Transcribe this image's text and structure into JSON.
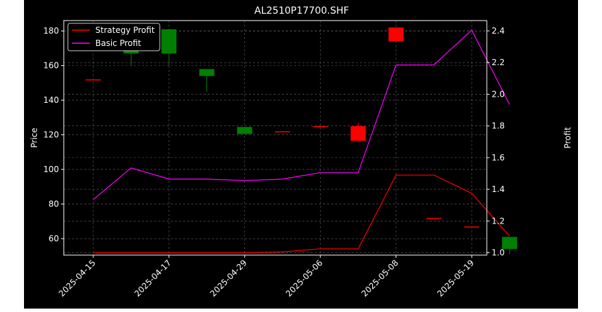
{
  "chart_data": {
    "type": "candlestick+line",
    "title": "AL2510P17700.SHF",
    "xlabel": "",
    "ylabel_left": "Price",
    "ylabel_right": "Profit",
    "ylim_left": [
      50.5,
      186
    ],
    "ylim_right": [
      0.985,
      2.465
    ],
    "yticks_left": [
      60,
      80,
      100,
      120,
      140,
      160,
      180
    ],
    "yticks_right": [
      "1.0",
      "1.2",
      "1.4",
      "1.6",
      "1.8",
      "2.0",
      "2.2",
      "2.4"
    ],
    "x_tick_labels": [
      "2025-04-15",
      "2025-04-17",
      "2025-04-29",
      "2025-05-06",
      "2025-05-08",
      "2025-05-19"
    ],
    "x_tick_positions": [
      0,
      2,
      4,
      6,
      8,
      10
    ],
    "grid": true,
    "legend_position": "top-left",
    "colors": {
      "background": "#000000",
      "text": "#ffffff",
      "grid": "#808080",
      "up": "#ff0000",
      "down": "#008000",
      "strategy_line": "#ff0000",
      "basic_line": "#ff00ff"
    },
    "candles": [
      {
        "open": 152,
        "high": 152,
        "low": 152,
        "close": 152
      },
      {
        "open": 181,
        "high": 181,
        "low": 160,
        "close": 167
      },
      {
        "open": 181,
        "high": 181,
        "low": 160,
        "close": 167
      },
      {
        "open": 158,
        "high": 158,
        "low": 145,
        "close": 154
      },
      {
        "open": 124.5,
        "high": 124.5,
        "low": 120.5,
        "close": 120.5
      },
      {
        "open": 122,
        "high": 122,
        "low": 122,
        "close": 122
      },
      {
        "open": 125,
        "high": 125,
        "low": 125,
        "close": 125
      },
      {
        "open": 116.5,
        "high": 127,
        "low": 116.5,
        "close": 125
      },
      {
        "open": 174,
        "high": 182,
        "low": 174,
        "close": 182
      },
      {
        "open": 72,
        "high": 72,
        "low": 72,
        "close": 72
      },
      {
        "open": 67,
        "high": 67,
        "low": 67,
        "close": 67
      },
      {
        "open": 61,
        "high": 61,
        "low": 51,
        "close": 54
      }
    ],
    "series": [
      {
        "name": "Strategy Profit",
        "values": [
          1.0,
          1.0,
          1.0,
          1.0,
          1.0,
          1.005,
          1.025,
          1.025,
          1.49,
          1.49,
          1.375,
          1.105
        ]
      },
      {
        "name": "Basic Profit",
        "values": [
          1.335,
          1.535,
          1.465,
          1.465,
          1.455,
          1.465,
          1.505,
          1.505,
          2.185,
          2.185,
          2.405,
          1.935
        ]
      }
    ]
  }
}
